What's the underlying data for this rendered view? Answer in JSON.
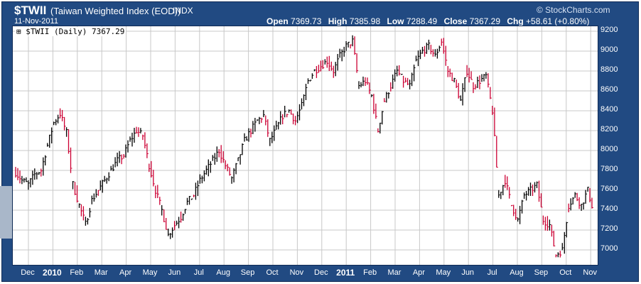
{
  "header": {
    "symbol": "$TWII",
    "name": "(Taiwan Weighted Index (EOD))",
    "exchange": "INDX",
    "date": "11-Nov-2011",
    "logo": "© StockCharts.com",
    "open_label": "Open",
    "open": "7369.73",
    "high_label": "High",
    "high": "7385.98",
    "low_label": "Low",
    "low": "7288.49",
    "close_label": "Close",
    "close": "7367.29",
    "chg_label": "Chg",
    "chg": "+58.61 (+0.80%)"
  },
  "legend": {
    "icon": "bar-chart-icon",
    "text": "$TWII (Daily) 7367.29"
  },
  "colors": {
    "frame": "#214a82",
    "up_bar": "#000000",
    "down_bar": "#cc0033",
    "grid": "#c8c8c8",
    "axis_text": "#ffffff"
  },
  "chart_data": {
    "type": "ohlc",
    "title": "$TWII (Daily) 7367.29",
    "xlabel": "",
    "ylabel": "",
    "y_axis_side": "right",
    "ylim": [
      6850,
      9250
    ],
    "y_ticks": [
      7000,
      7200,
      7400,
      7600,
      7800,
      8000,
      8200,
      8400,
      8600,
      8800,
      9000,
      9200
    ],
    "x_ticks": [
      "Dec",
      "2010",
      "Feb",
      "Mar",
      "Apr",
      "May",
      "Jun",
      "Jul",
      "Aug",
      "Sep",
      "Oct",
      "Nov",
      "Dec",
      "2011",
      "Feb",
      "Mar",
      "Apr",
      "May",
      "Jun",
      "Jul",
      "Aug",
      "Sep",
      "Oct",
      "Nov"
    ],
    "year_ticks": [
      "2010",
      "2011"
    ],
    "grid": true,
    "series": [
      {
        "name": "$TWII",
        "weekly_close": [
          [
            0,
            7780
          ],
          [
            1,
            7700
          ],
          [
            2,
            7660
          ],
          [
            3,
            7760
          ],
          [
            4,
            7800
          ],
          [
            5,
            8050
          ],
          [
            6,
            8280
          ],
          [
            7,
            8370
          ],
          [
            8,
            8180
          ],
          [
            9,
            7660
          ],
          [
            10,
            7450
          ],
          [
            11,
            7260
          ],
          [
            12,
            7500
          ],
          [
            13,
            7600
          ],
          [
            14,
            7700
          ],
          [
            15,
            7800
          ],
          [
            16,
            7900
          ],
          [
            17,
            7950
          ],
          [
            18,
            8100
          ],
          [
            19,
            8200
          ],
          [
            20,
            8150
          ],
          [
            21,
            7850
          ],
          [
            22,
            7600
          ],
          [
            23,
            7400
          ],
          [
            24,
            7150
          ],
          [
            25,
            7250
          ],
          [
            26,
            7330
          ],
          [
            27,
            7480
          ],
          [
            28,
            7550
          ],
          [
            29,
            7700
          ],
          [
            30,
            7800
          ],
          [
            31,
            7900
          ],
          [
            32,
            8000
          ],
          [
            33,
            7850
          ],
          [
            34,
            7720
          ],
          [
            35,
            7900
          ],
          [
            36,
            8100
          ],
          [
            37,
            8200
          ],
          [
            38,
            8300
          ],
          [
            39,
            8350
          ],
          [
            40,
            8100
          ],
          [
            41,
            8220
          ],
          [
            42,
            8350
          ],
          [
            43,
            8400
          ],
          [
            44,
            8300
          ],
          [
            45,
            8450
          ],
          [
            46,
            8700
          ],
          [
            47,
            8800
          ],
          [
            48,
            8850
          ],
          [
            49,
            8900
          ],
          [
            50,
            8800
          ],
          [
            51,
            8950
          ],
          [
            52,
            9050
          ],
          [
            53,
            9100
          ],
          [
            54,
            8650
          ],
          [
            55,
            8700
          ],
          [
            56,
            8550
          ],
          [
            57,
            8200
          ],
          [
            58,
            8500
          ],
          [
            59,
            8650
          ],
          [
            60,
            8800
          ],
          [
            61,
            8700
          ],
          [
            62,
            8650
          ],
          [
            63,
            8900
          ],
          [
            64,
            9000
          ],
          [
            65,
            9050
          ],
          [
            66,
            8950
          ],
          [
            67,
            9100
          ],
          [
            68,
            8800
          ],
          [
            69,
            8700
          ],
          [
            70,
            8500
          ],
          [
            71,
            8800
          ],
          [
            72,
            8650
          ],
          [
            73,
            8700
          ],
          [
            74,
            8750
          ],
          [
            75,
            8400
          ],
          [
            76,
            7550
          ],
          [
            77,
            7700
          ],
          [
            78,
            7450
          ],
          [
            79,
            7300
          ],
          [
            80,
            7550
          ],
          [
            81,
            7600
          ],
          [
            82,
            7650
          ],
          [
            83,
            7300
          ],
          [
            84,
            7250
          ],
          [
            85,
            6950
          ],
          [
            86,
            7000
          ],
          [
            87,
            7450
          ],
          [
            88,
            7550
          ],
          [
            89,
            7450
          ],
          [
            90,
            7600
          ],
          [
            91,
            7370
          ]
        ]
      }
    ]
  }
}
